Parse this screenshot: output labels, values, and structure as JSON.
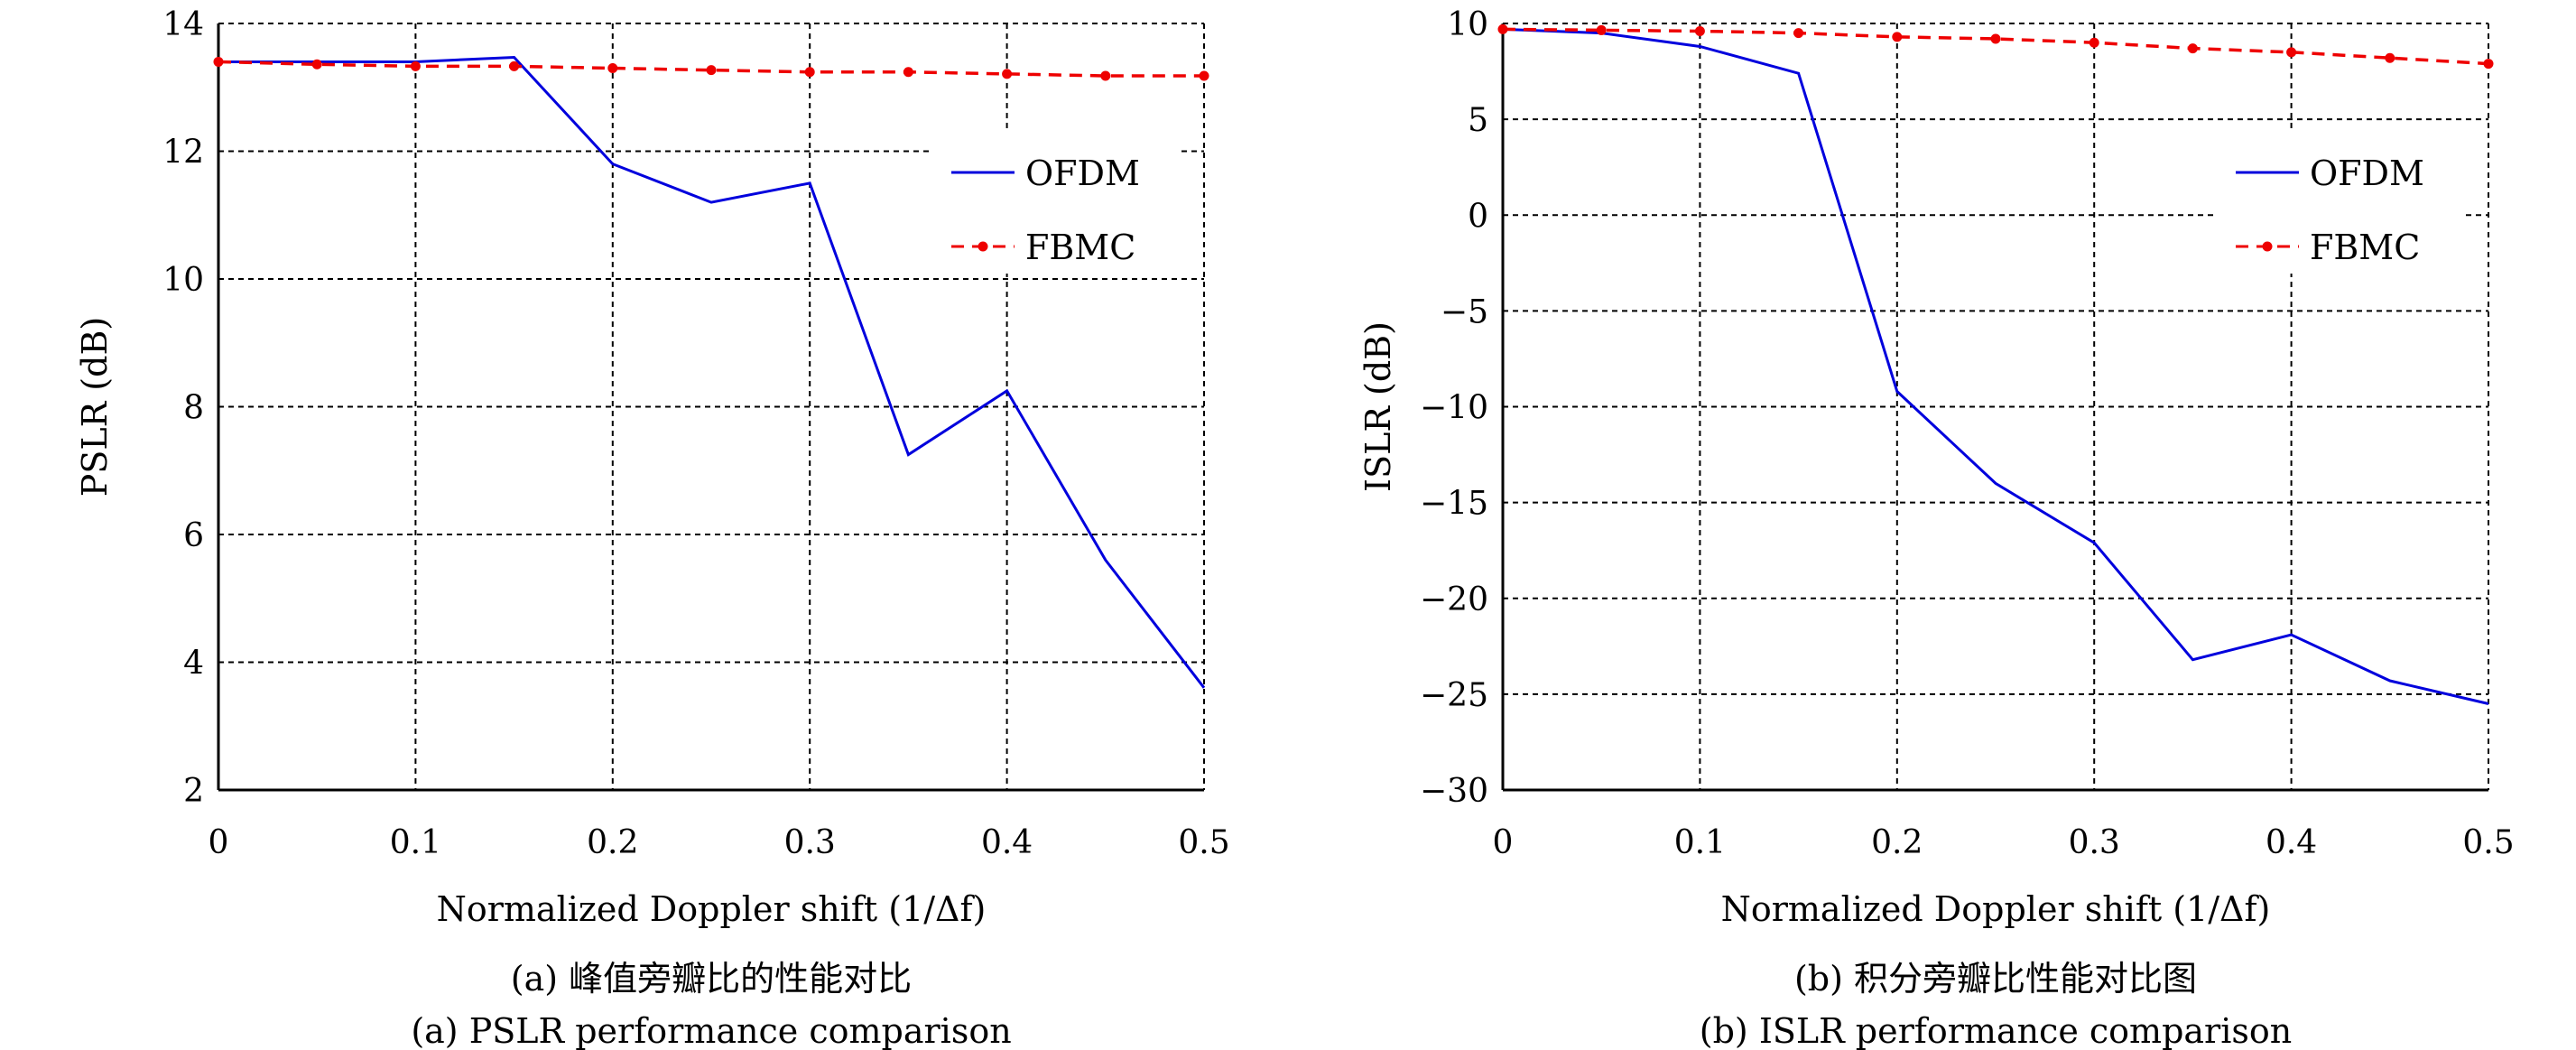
{
  "chart_data": [
    {
      "type": "line",
      "xlabel": "Normalized Doppler shift (1/Δf)",
      "ylabel": "PSLR (dB)",
      "caption_cn": "(a) 峰值旁瓣比的性能对比",
      "caption_en": "(a) PSLR performance comparison",
      "xlim": [
        0,
        0.5
      ],
      "ylim": [
        2,
        14
      ],
      "xticks": [
        "0",
        "0.1",
        "0.2",
        "0.3",
        "0.4",
        "0.5"
      ],
      "yticks": [
        "2",
        "4",
        "6",
        "8",
        "10",
        "12",
        "14"
      ],
      "grid": true,
      "legend_position": "upper-right",
      "x": [
        0,
        0.05,
        0.1,
        0.15,
        0.2,
        0.25,
        0.3,
        0.35,
        0.4,
        0.45,
        0.5
      ],
      "series": [
        {
          "name": "OFDM",
          "color": "#0000dd",
          "style": "solid",
          "values": [
            13.4,
            13.4,
            13.4,
            13.47,
            11.8,
            11.2,
            11.5,
            7.25,
            8.25,
            5.6,
            3.6
          ]
        },
        {
          "name": "FBMC",
          "color": "#ee0000",
          "style": "dashed-dot-markers",
          "values": [
            13.4,
            13.36,
            13.33,
            13.33,
            13.3,
            13.27,
            13.24,
            13.24,
            13.21,
            13.18,
            13.18
          ]
        }
      ]
    },
    {
      "type": "line",
      "xlabel": "Normalized Doppler shift (1/Δf)",
      "ylabel": "ISLR (dB)",
      "caption_cn": "(b) 积分旁瓣比性能对比图",
      "caption_en": "(b) ISLR performance comparison",
      "xlim": [
        0,
        0.5
      ],
      "ylim": [
        -30,
        10
      ],
      "xticks": [
        "0",
        "0.1",
        "0.2",
        "0.3",
        "0.4",
        "0.5"
      ],
      "yticks": [
        "−30",
        "−25",
        "−20",
        "−15",
        "−10",
        "−5",
        "0",
        "5",
        "10"
      ],
      "grid": true,
      "legend_position": "upper-right",
      "x": [
        0,
        0.05,
        0.1,
        0.15,
        0.2,
        0.25,
        0.3,
        0.35,
        0.4,
        0.45,
        0.5
      ],
      "series": [
        {
          "name": "OFDM",
          "color": "#0000dd",
          "style": "solid",
          "values": [
            9.7,
            9.5,
            8.8,
            7.4,
            -9.2,
            -14.0,
            -17.1,
            -23.2,
            -21.9,
            -24.3,
            -25.5
          ]
        },
        {
          "name": "FBMC",
          "color": "#ee0000",
          "style": "dashed-dot-markers",
          "values": [
            9.7,
            9.65,
            9.6,
            9.5,
            9.3,
            9.2,
            9.0,
            8.7,
            8.5,
            8.2,
            7.9
          ]
        }
      ]
    }
  ]
}
